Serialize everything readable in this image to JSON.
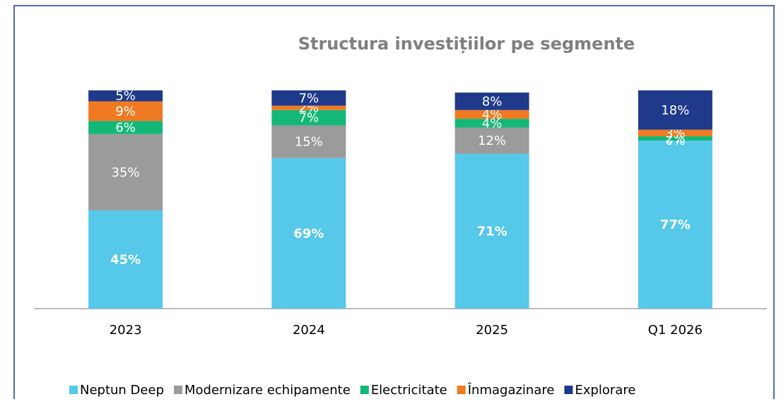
{
  "chart_data": {
    "type": "stacked_bar",
    "title": "Structura investițiilor pe segmente",
    "categories": [
      "2023",
      "2024",
      "2025",
      "Q1 2026"
    ],
    "ylim": [
      0,
      100
    ],
    "legend": "bottom",
    "series": [
      {
        "name": "Neptun Deep",
        "color": "#56c8ea",
        "values": [
          45,
          69,
          71,
          77
        ],
        "value_labels": [
          "45%",
          "69%",
          "71%",
          "77%"
        ]
      },
      {
        "name": "Modernizare echipamente",
        "color": "#9b9b9b",
        "values": [
          35,
          15,
          12,
          0
        ],
        "value_labels": [
          "35%",
          "15%",
          "12%",
          "0%"
        ]
      },
      {
        "name": "Electricitate",
        "color": "#13b877",
        "values": [
          6,
          7,
          4,
          2
        ],
        "value_labels": [
          "6%",
          "7%",
          "4%",
          "2%"
        ]
      },
      {
        "name": "Înmagazinare",
        "color": "#f07a22",
        "values": [
          9,
          2,
          4,
          3
        ],
        "value_labels": [
          "9%",
          "2%",
          "4%",
          "3%"
        ]
      },
      {
        "name": "Explorare",
        "color": "#1f3a8a",
        "values": [
          5,
          7,
          8,
          18
        ],
        "value_labels": [
          "5%",
          "7%",
          "8%",
          "18%"
        ]
      }
    ]
  }
}
